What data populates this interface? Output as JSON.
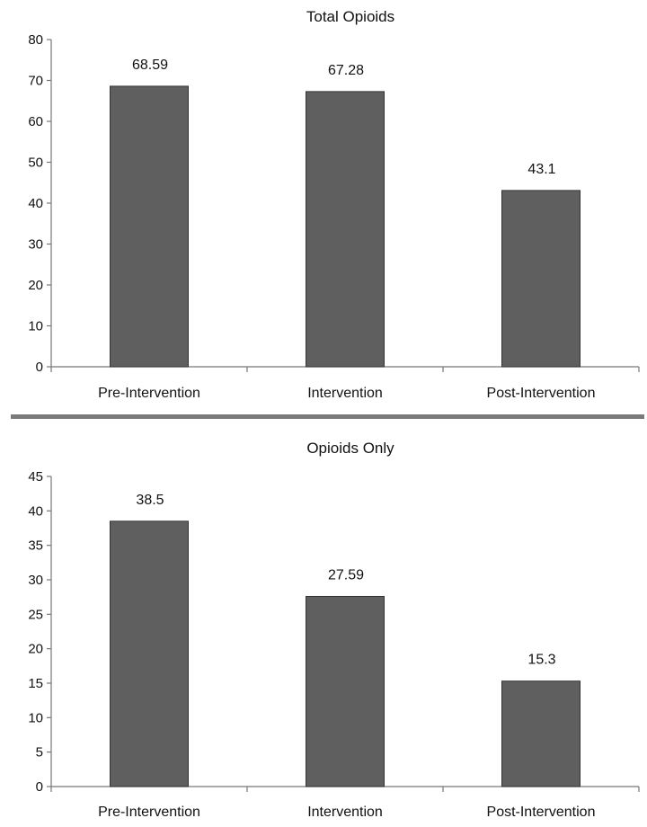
{
  "chart_data": [
    {
      "type": "bar",
      "title": "Total Opioids",
      "categories": [
        "Pre-Intervention",
        "Intervention",
        "Post-Intervention"
      ],
      "values": [
        68.59,
        67.28,
        43.1
      ],
      "data_labels": [
        "68.59",
        "67.28",
        "43.1"
      ],
      "ylim": [
        0,
        80
      ],
      "yticks": [
        0,
        10,
        20,
        30,
        40,
        50,
        60,
        70,
        80
      ],
      "xlabel": "",
      "ylabel": "",
      "grid": false,
      "bar_color": "#5f5f5f"
    },
    {
      "type": "bar",
      "title": "Opioids Only",
      "categories": [
        "Pre-Intervention",
        "Intervention",
        "Post-Intervention"
      ],
      "values": [
        38.5,
        27.59,
        15.3
      ],
      "data_labels": [
        "38.5",
        "27.59",
        "15.3"
      ],
      "ylim": [
        0,
        45
      ],
      "yticks": [
        0,
        5,
        10,
        15,
        20,
        25,
        30,
        35,
        40,
        45
      ],
      "xlabel": "",
      "ylabel": "",
      "grid": false,
      "bar_color": "#5f5f5f"
    }
  ],
  "divider_color": "#7a7a7a"
}
